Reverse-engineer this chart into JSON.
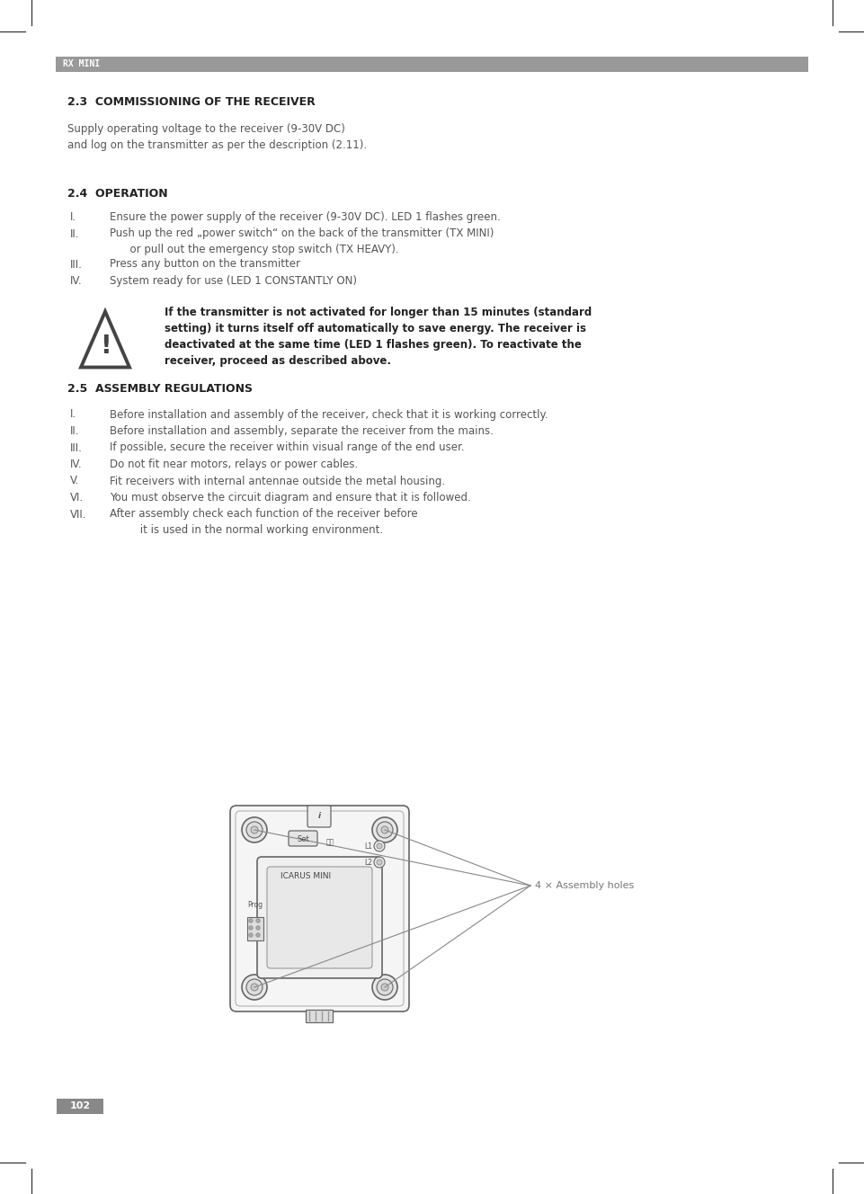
{
  "page_number": "102",
  "header_label": "RX MINI",
  "header_bg": "#999999",
  "header_text_color": "#ffffff",
  "page_bg": "#ffffff",
  "section_23_title": "2.3  COMMISSIONING OF THE RECEIVER",
  "section_23_body": "Supply operating voltage to the receiver (9-30V DC)\nand log on the transmitter as per the description (2.11).",
  "section_24_title": "2.4  OPERATION",
  "section_24_items": [
    [
      "I.",
      "Ensure the power supply of the receiver (9-30V DC). LED 1 flashes green."
    ],
    [
      "II.",
      "Push up the red „power switch“ on the back of the transmitter (TX MINI)\n      or pull out the emergency stop switch (TX HEAVY)."
    ],
    [
      "III.",
      "Press any button on the transmitter"
    ],
    [
      "IV.",
      "System ready for use (LED 1 CONSTANTLY ON)"
    ]
  ],
  "warning_text": "If the transmitter is not activated for longer than 15 minutes (standard\nsetting) it turns itself off automatically to save energy. The receiver is\ndeactivated at the same time (LED 1 flashes green). To reactivate the\nreceiver, proceed as described above.",
  "section_25_title": "2.5  ASSEMBLY REGULATIONS",
  "section_25_items": [
    [
      "I.",
      "Before installation and assembly of the receiver, check that it is working correctly."
    ],
    [
      "II.",
      "Before installation and assembly, separate the receiver from the mains."
    ],
    [
      "III.",
      "If possible, secure the receiver within visual range of the end user."
    ],
    [
      "IV.",
      "Do not fit near motors, relays or power cables."
    ],
    [
      "V.",
      "Fit receivers with internal antennae outside the metal housing."
    ],
    [
      "VI.",
      "You must observe the circuit diagram and ensure that it is followed."
    ],
    [
      "VII.",
      "After assembly check each function of the receiver before\n         it is used in the normal working environment."
    ]
  ],
  "assembly_label": "4 × Assembly holes",
  "title_fontsize": 9.0,
  "body_fontsize": 8.5,
  "header_fontsize": 7.0,
  "warning_fontsize": 8.5,
  "page_num_fontsize": 8.0,
  "text_color": "#555555",
  "title_color": "#222222"
}
